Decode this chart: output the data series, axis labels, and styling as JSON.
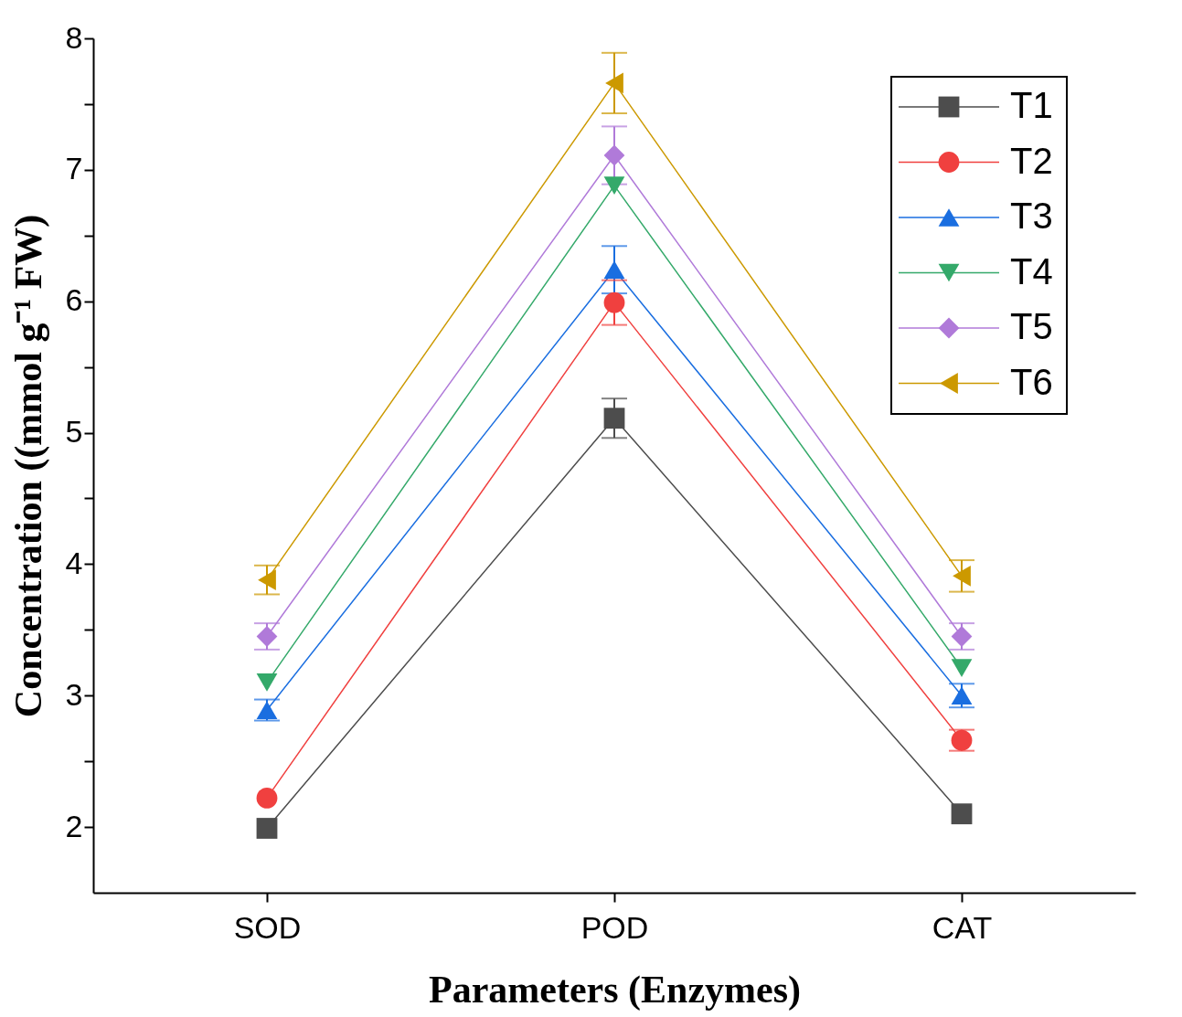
{
  "chart_data": {
    "type": "line",
    "xlabel": "Parameters (Enzymes)",
    "ylabel": "Concentration ((mmol g⁻¹ FW)",
    "categories": [
      "SOD",
      "POD",
      "CAT"
    ],
    "ylim": [
      1.5,
      8
    ],
    "yticks": [
      {
        "value": 2.5,
        "label": null
      },
      {
        "value": 3.5,
        "label": null
      },
      {
        "value": 4.5,
        "label": null
      },
      {
        "value": 5.5,
        "label": null
      },
      {
        "value": 6.5,
        "label": null
      },
      {
        "value": 7.5,
        "label": null
      },
      2,
      3,
      4,
      5,
      6,
      7,
      8
    ],
    "grid": false,
    "legend": "top right",
    "line_style": "solid",
    "series": [
      {
        "name": "T1",
        "color": "#4d4d4d",
        "marker": "square",
        "values": [
          1.99,
          5.11,
          2.1
        ],
        "errors": [
          null,
          0.15,
          null
        ]
      },
      {
        "name": "T2",
        "color": "#f0403f",
        "marker": "circle",
        "values": [
          2.22,
          5.99,
          2.66
        ],
        "errors": [
          null,
          0.17,
          0.08
        ]
      },
      {
        "name": "T3",
        "color": "#1a6ee0",
        "marker": "triangle-up",
        "values": [
          2.89,
          6.24,
          3.0
        ],
        "errors": [
          0.08,
          0.18,
          0.09
        ]
      },
      {
        "name": "T4",
        "color": "#34a96a",
        "marker": "triangle-down",
        "values": [
          3.1,
          6.88,
          3.21
        ],
        "errors": [
          null,
          null,
          null
        ]
      },
      {
        "name": "T5",
        "color": "#b07ad9",
        "marker": "diamond",
        "values": [
          3.45,
          7.11,
          3.45
        ],
        "errors": [
          0.1,
          0.22,
          0.1
        ]
      },
      {
        "name": "T6",
        "color": "#cc9900",
        "marker": "triangle-left",
        "values": [
          3.88,
          7.66,
          3.91
        ],
        "errors": [
          0.11,
          0.23,
          0.12
        ]
      }
    ]
  }
}
